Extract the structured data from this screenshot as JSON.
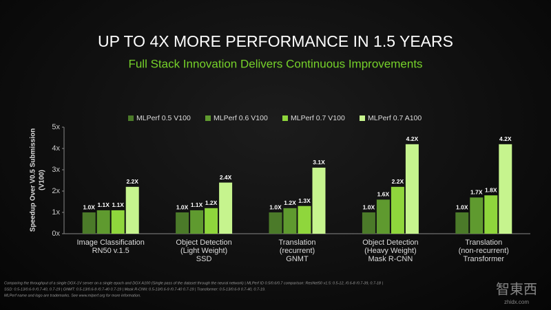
{
  "chart_data": {
    "type": "bar",
    "title": "UP TO 4X MORE PERFORMANCE IN 1.5 YEARS",
    "subtitle": "Full Stack Innovation Delivers Continuous Improvements",
    "ylabel": [
      "Speedup Over V0.5 Submission",
      "(V100)"
    ],
    "categories": [
      [
        "Image Classification",
        "RN50 v.1.5"
      ],
      [
        "Object Detection",
        "(Light Weight)",
        "SSD"
      ],
      [
        "Translation",
        "(recurrent)",
        "GNMT"
      ],
      [
        "Object Detection",
        "(Heavy Weight)",
        "Mask R-CNN"
      ],
      [
        "Translation",
        "(non-recurrent)",
        "Transformer"
      ]
    ],
    "series": [
      {
        "name": "MLPerf 0.5 V100",
        "color": "#4b7a29",
        "values": [
          1.0,
          1.0,
          1.0,
          1.0,
          1.0
        ],
        "value_labels": [
          "1.0X",
          "1.0X",
          "1.0X",
          "1.0X",
          "1.0X"
        ]
      },
      {
        "name": "MLPerf 0.6 V100",
        "color": "#5f9a2f",
        "values": [
          1.1,
          1.1,
          1.2,
          1.6,
          1.7
        ],
        "value_labels": [
          "1.1X",
          "1.1X",
          "1.2X",
          "1.6X",
          "1.7X"
        ]
      },
      {
        "name": "MLPerf 0.7 V100",
        "color": "#8fd63c",
        "values": [
          1.1,
          1.2,
          1.3,
          2.2,
          1.8
        ],
        "value_labels": [
          "1.1X",
          "1.2X",
          "1.3X",
          "2.2X",
          "1.8X"
        ]
      },
      {
        "name": "MLPerf 0.7 A100",
        "color": "#c6f48e",
        "values": [
          2.2,
          2.4,
          3.1,
          4.2,
          4.2
        ],
        "value_labels": [
          "2.2X",
          "2.4X",
          "3.1X",
          "4.2X",
          "4.2X"
        ]
      }
    ],
    "ylim": [
      0,
      5
    ],
    "yticks": [
      {
        "value": 0,
        "label": "0x"
      },
      {
        "value": 1,
        "label": "1x"
      },
      {
        "value": 2,
        "label": "2x"
      },
      {
        "value": 3,
        "label": "3x"
      },
      {
        "value": 4,
        "label": "4x"
      },
      {
        "value": 5,
        "label": "5x"
      }
    ],
    "footnote": [
      "Comparing the throughput of a single DGX-1V server on a single epoch and DGX A100 (Single pass of the dataset through the neural network) | MLPerf ID 0.5/0.6/0.7 comparison: ResNet50 v1.5: 0.5-12, /0.6-8 /0.7-39, 0.7-18 |",
      "SSD: 0.5-13/0.6-9 /0.7-40, 0.7-19 | GNMT: 0.5-13/0.6-9 /0.7-40 0.7-19 | Mask R-CNN: 0.5-13/0.6-9 /0.7-40 0.7-19 | Transformer: 0.5-13/0.6-9 0.7-40, 0.7-19.",
      "MLPerf name and logo are trademarks. See www.mlperf.org for more information."
    ],
    "watermark": [
      "智東西",
      "zhidx.com"
    ]
  }
}
